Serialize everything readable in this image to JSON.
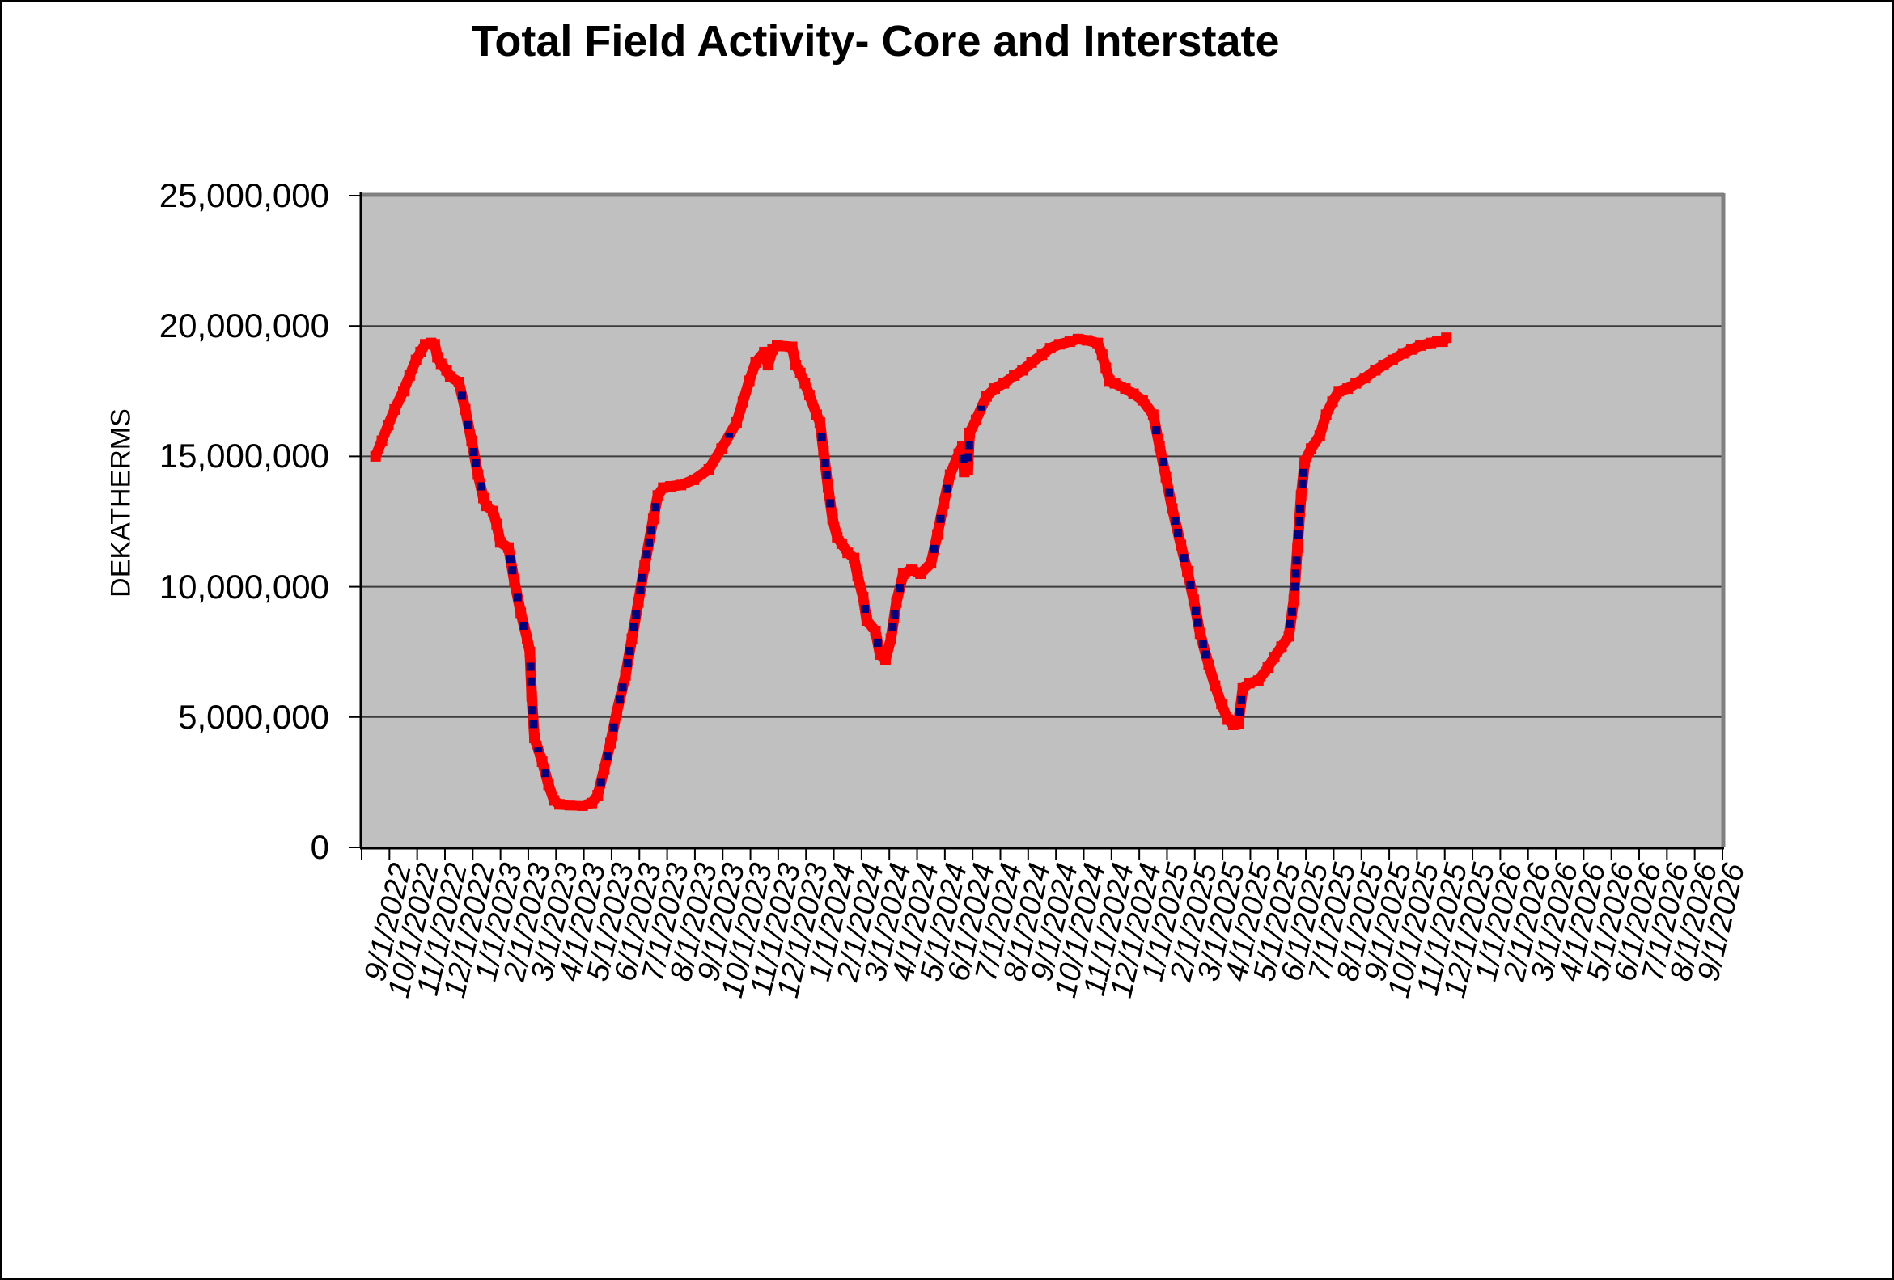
{
  "title": "Total Field Activity- Core and Interstate",
  "y_axis": {
    "title": "DEKATHERMS",
    "min": 0,
    "max": 25000000,
    "tick_values": [
      25000000,
      20000000,
      15000000,
      10000000,
      5000000,
      0
    ],
    "tick_labels": [
      "25,000,000",
      "20,000,000",
      "15,000,000",
      "10,000,000",
      "5,000,000",
      "0"
    ],
    "gridline_values": [
      5000000,
      10000000,
      15000000,
      20000000
    ]
  },
  "x_axis": {
    "tick_labels": [
      "9/1/2022",
      "10/1/2022",
      "11/1/2022",
      "12/1/2022",
      "1/1/2023",
      "2/1/2023",
      "3/1/2023",
      "4/1/2023",
      "5/1/2023",
      "6/1/2023",
      "7/1/2023",
      "8/1/2023",
      "9/1/2023",
      "10/1/2023",
      "11/1/2023",
      "12/1/2023",
      "1/1/2024",
      "2/1/2024",
      "3/1/2024",
      "4/1/2024",
      "5/1/2024",
      "6/1/2024",
      "7/1/2024",
      "8/1/2024",
      "9/1/2024",
      "10/1/2024",
      "11/1/2024",
      "12/1/2024",
      "1/1/2025",
      "2/1/2025",
      "3/1/2025",
      "4/1/2025",
      "5/1/2025",
      "6/1/2025",
      "7/1/2025",
      "8/1/2025",
      "9/1/2025",
      "10/1/2025",
      "11/1/2025",
      "12/1/2025",
      "1/1/2026",
      "2/1/2026",
      "3/1/2026",
      "4/1/2026",
      "5/1/2026",
      "6/1/2026",
      "7/1/2026",
      "8/1/2026",
      "9/1/2026"
    ]
  },
  "colors": {
    "plot_background": "#c0c0c0",
    "gridline": "#3c3c3c",
    "axis_line": "#000000",
    "plot_border": "#808080",
    "series_line": "#fe0000",
    "series_marker": "#000080"
  },
  "chart_data": {
    "type": "line",
    "title": "Total Field Activity- Core and Interstate",
    "xlabel": "",
    "ylabel": "DEKATHERMS",
    "ylim": [
      0,
      25000000
    ],
    "grid": true,
    "legend_position": "none",
    "series": [
      {
        "name": "",
        "points": [
          [
            "9/1/2022",
            15000000
          ],
          [
            "9/8/2022",
            15600000
          ],
          [
            "9/15/2022",
            16200000
          ],
          [
            "9/22/2022",
            16800000
          ],
          [
            "10/1/2022",
            17500000
          ],
          [
            "10/8/2022",
            18100000
          ],
          [
            "10/15/2022",
            18700000
          ],
          [
            "10/20/2022",
            19000000
          ],
          [
            "10/25/2022",
            19300000
          ],
          [
            "11/1/2022",
            19350000
          ],
          [
            "11/5/2022",
            19300000
          ],
          [
            "11/8/2022",
            18800000
          ],
          [
            "11/12/2022",
            18550000
          ],
          [
            "11/18/2022",
            18300000
          ],
          [
            "11/22/2022",
            18050000
          ],
          [
            "12/1/2022",
            17850000
          ],
          [
            "12/8/2022",
            16800000
          ],
          [
            "12/15/2022",
            15600000
          ],
          [
            "12/22/2022",
            14300000
          ],
          [
            "12/28/2022",
            13400000
          ],
          [
            "1/1/2023",
            13100000
          ],
          [
            "1/8/2023",
            12900000
          ],
          [
            "1/12/2023",
            12400000
          ],
          [
            "1/16/2023",
            11700000
          ],
          [
            "1/25/2023",
            11500000
          ],
          [
            "2/1/2023",
            10200000
          ],
          [
            "2/8/2023",
            9000000
          ],
          [
            "2/15/2023",
            8000000
          ],
          [
            "2/18/2023",
            7500000
          ],
          [
            "2/20/2023",
            5800000
          ],
          [
            "2/23/2023",
            4200000
          ],
          [
            "3/1/2023",
            3300000
          ],
          [
            "3/8/2023",
            2400000
          ],
          [
            "3/14/2023",
            1800000
          ],
          [
            "3/20/2023",
            1650000
          ],
          [
            "4/1/2023",
            1620000
          ],
          [
            "4/15/2023",
            1600000
          ],
          [
            "4/25/2023",
            1700000
          ],
          [
            "5/1/2023",
            2000000
          ],
          [
            "5/8/2023",
            3000000
          ],
          [
            "5/15/2023",
            4000000
          ],
          [
            "5/22/2023",
            5200000
          ],
          [
            "6/1/2023",
            6600000
          ],
          [
            "6/8/2023",
            8000000
          ],
          [
            "6/15/2023",
            9400000
          ],
          [
            "6/22/2023",
            10800000
          ],
          [
            "7/1/2023",
            12600000
          ],
          [
            "7/6/2023",
            13500000
          ],
          [
            "7/12/2023",
            13800000
          ],
          [
            "7/20/2023",
            13850000
          ],
          [
            "8/1/2023",
            13900000
          ],
          [
            "8/15/2023",
            14100000
          ],
          [
            "9/1/2023",
            14500000
          ],
          [
            "9/15/2023",
            15300000
          ],
          [
            "10/1/2023",
            16300000
          ],
          [
            "10/8/2023",
            17100000
          ],
          [
            "10/15/2023",
            17900000
          ],
          [
            "10/22/2023",
            18600000
          ],
          [
            "11/1/2023",
            19000000
          ],
          [
            "11/5/2023",
            18500000
          ],
          [
            "11/10/2023",
            19100000
          ],
          [
            "11/15/2023",
            19250000
          ],
          [
            "12/1/2023",
            19200000
          ],
          [
            "12/5/2023",
            18500000
          ],
          [
            "12/10/2023",
            18200000
          ],
          [
            "12/15/2023",
            17800000
          ],
          [
            "12/20/2023",
            17350000
          ],
          [
            "12/28/2023",
            16600000
          ],
          [
            "1/1/2024",
            16300000
          ],
          [
            "1/5/2024",
            15200000
          ],
          [
            "1/10/2024",
            13800000
          ],
          [
            "1/15/2024",
            12600000
          ],
          [
            "1/20/2024",
            11900000
          ],
          [
            "1/25/2024",
            11650000
          ],
          [
            "2/1/2024",
            11300000
          ],
          [
            "2/8/2024",
            11100000
          ],
          [
            "2/12/2024",
            10400000
          ],
          [
            "2/18/2024",
            9600000
          ],
          [
            "2/22/2024",
            8700000
          ],
          [
            "3/1/2024",
            8300000
          ],
          [
            "3/6/2024",
            7400000
          ],
          [
            "3/12/2024",
            7200000
          ],
          [
            "3/18/2024",
            8000000
          ],
          [
            "3/24/2024",
            9400000
          ],
          [
            "4/1/2024",
            10500000
          ],
          [
            "4/10/2024",
            10650000
          ],
          [
            "4/20/2024",
            10500000
          ],
          [
            "5/1/2024",
            10900000
          ],
          [
            "5/8/2024",
            12000000
          ],
          [
            "5/15/2024",
            13200000
          ],
          [
            "5/22/2024",
            14300000
          ],
          [
            "6/1/2024",
            15100000
          ],
          [
            "6/5/2024",
            15400000
          ],
          [
            "6/7/2024",
            14400000
          ],
          [
            "6/11/2024",
            14500000
          ],
          [
            "6/13/2024",
            15900000
          ],
          [
            "6/20/2024",
            16400000
          ],
          [
            "7/1/2024",
            17300000
          ],
          [
            "7/10/2024",
            17600000
          ],
          [
            "7/20/2024",
            17800000
          ],
          [
            "8/1/2024",
            18100000
          ],
          [
            "8/10/2024",
            18300000
          ],
          [
            "8/20/2024",
            18600000
          ],
          [
            "9/1/2024",
            18900000
          ],
          [
            "9/10/2024",
            19150000
          ],
          [
            "9/20/2024",
            19300000
          ],
          [
            "10/1/2024",
            19400000
          ],
          [
            "10/10/2024",
            19500000
          ],
          [
            "10/20/2024",
            19450000
          ],
          [
            "11/1/2024",
            19350000
          ],
          [
            "11/6/2024",
            18900000
          ],
          [
            "11/10/2024",
            18400000
          ],
          [
            "11/14/2024",
            17900000
          ],
          [
            "11/20/2024",
            17800000
          ],
          [
            "12/1/2024",
            17600000
          ],
          [
            "12/10/2024",
            17400000
          ],
          [
            "12/20/2024",
            17150000
          ],
          [
            "1/1/2025",
            16600000
          ],
          [
            "1/8/2025",
            15400000
          ],
          [
            "1/15/2025",
            14200000
          ],
          [
            "1/22/2025",
            13000000
          ],
          [
            "2/1/2025",
            11600000
          ],
          [
            "2/8/2025",
            10600000
          ],
          [
            "2/15/2025",
            9500000
          ],
          [
            "2/22/2025",
            8200000
          ],
          [
            "3/1/2025",
            7000000
          ],
          [
            "3/8/2025",
            6200000
          ],
          [
            "3/15/2025",
            5500000
          ],
          [
            "3/22/2025",
            4900000
          ],
          [
            "3/28/2025",
            4700000
          ],
          [
            "4/3/2025",
            4750000
          ],
          [
            "4/8/2025",
            6100000
          ],
          [
            "4/15/2025",
            6300000
          ],
          [
            "4/25/2025",
            6400000
          ],
          [
            "5/5/2025",
            6900000
          ],
          [
            "5/12/2025",
            7300000
          ],
          [
            "5/20/2025",
            7700000
          ],
          [
            "5/28/2025",
            8100000
          ],
          [
            "6/3/2025",
            9500000
          ],
          [
            "6/7/2025",
            11500000
          ],
          [
            "6/11/2025",
            13500000
          ],
          [
            "6/15/2025",
            14800000
          ],
          [
            "6/22/2025",
            15300000
          ],
          [
            "7/1/2025",
            15800000
          ],
          [
            "7/8/2025",
            16600000
          ],
          [
            "7/15/2025",
            17100000
          ],
          [
            "7/22/2025",
            17500000
          ],
          [
            "8/1/2025",
            17600000
          ],
          [
            "8/10/2025",
            17800000
          ],
          [
            "8/20/2025",
            18000000
          ],
          [
            "9/1/2025",
            18300000
          ],
          [
            "9/10/2025",
            18500000
          ],
          [
            "9/20/2025",
            18700000
          ],
          [
            "10/1/2025",
            18950000
          ],
          [
            "10/10/2025",
            19100000
          ],
          [
            "10/20/2025",
            19250000
          ],
          [
            "11/1/2025",
            19350000
          ],
          [
            "11/8/2025",
            19400000
          ],
          [
            "11/14/2025",
            19400000
          ],
          [
            "11/18/2025",
            19550000
          ]
        ]
      }
    ]
  }
}
